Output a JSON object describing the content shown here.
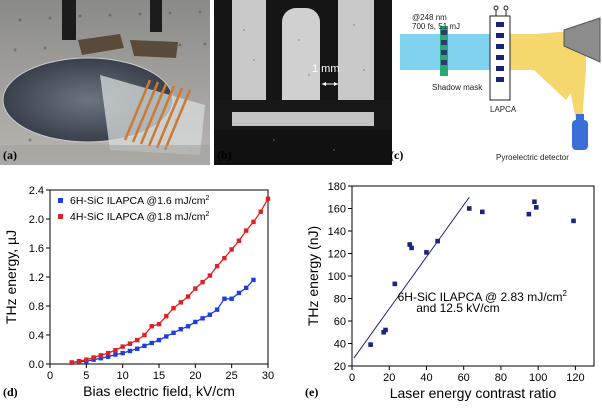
{
  "panel_labels": {
    "a": "(a)",
    "b": "(b)",
    "c": "(c)",
    "d": "(d)",
    "e": "(e)"
  },
  "panel_b": {
    "scale_label": "1 mm"
  },
  "panel_c": {
    "beam_wavelength": "@248 nm",
    "beam_params": "700 fs, 51 mJ",
    "mask_label": "Shadow mask",
    "device_label": "LAPCA",
    "detector_label": "Pyroelectric detector",
    "colors": {
      "beam": "#7fd3ee",
      "thz": "#f5d76e",
      "mask": "#2aa876",
      "detector": "#3b6fd8"
    }
  },
  "chart_data": [
    {
      "type": "scatter",
      "xlabel": "Bias electric field, kV/cm",
      "ylabel": "THz energy, µJ",
      "xlim": [
        0,
        30
      ],
      "ylim": [
        0,
        2.4
      ],
      "xticks": [
        "0",
        "5",
        "10",
        "15",
        "20",
        "25",
        "30"
      ],
      "yticks": [
        "0.0",
        "0.4",
        "0.8",
        "1.2",
        "1.6",
        "2.0",
        "2.4"
      ],
      "legend_position": "top-left",
      "series": [
        {
          "name": "6H-SiC ILAPCA @1.6 mJ/cm",
          "superscript": "2",
          "color": "#1f3ce0",
          "marker": "square",
          "x": [
            3,
            4,
            5,
            6,
            7,
            8,
            9,
            10,
            11,
            12,
            13,
            14,
            15,
            16,
            17,
            18,
            19,
            20,
            21,
            22,
            23,
            24,
            25,
            26,
            27,
            28
          ],
          "y": [
            0.02,
            0.03,
            0.04,
            0.06,
            0.08,
            0.1,
            0.13,
            0.15,
            0.18,
            0.21,
            0.25,
            0.29,
            0.33,
            0.38,
            0.43,
            0.48,
            0.52,
            0.58,
            0.63,
            0.68,
            0.75,
            0.9,
            0.9,
            0.98,
            1.05,
            1.16
          ]
        },
        {
          "name": "4H-SiC ILAPCA @1.8 mJ/cm",
          "superscript": "2",
          "color": "#e02020",
          "marker": "square",
          "x": [
            3,
            4,
            5,
            6,
            7,
            8,
            9,
            10,
            11,
            12,
            13,
            14,
            15,
            16,
            17,
            18,
            19,
            20,
            21,
            22,
            23,
            24,
            25,
            26,
            27,
            28,
            29,
            30
          ],
          "y": [
            0.02,
            0.04,
            0.06,
            0.09,
            0.12,
            0.15,
            0.19,
            0.24,
            0.28,
            0.33,
            0.4,
            0.52,
            0.55,
            0.66,
            0.77,
            0.85,
            0.93,
            1.04,
            1.13,
            1.22,
            1.35,
            1.46,
            1.58,
            1.7,
            1.84,
            1.96,
            2.1,
            2.28
          ]
        }
      ]
    },
    {
      "type": "scatter",
      "xlabel": "Laser energy contrast ratio",
      "ylabel": "THz energy (nJ)",
      "xlim": [
        0,
        130
      ],
      "ylim": [
        20,
        180
      ],
      "xticks": [
        "0",
        "20",
        "40",
        "60",
        "80",
        "100",
        "120"
      ],
      "yticks": [
        "20",
        "40",
        "60",
        "80",
        "100",
        "120",
        "140",
        "160",
        "180"
      ],
      "annotation_line1": "6H-SiC ILAPCA @ 2.83 mJ/cm",
      "annotation_sup": "2",
      "annotation_line2": "and 12.5 kV/cm",
      "fit_line": {
        "x": [
          1,
          63
        ],
        "y": [
          27,
          170
        ]
      },
      "series": [
        {
          "name": "",
          "color": "#1a237e",
          "marker": "square",
          "x": [
            10,
            17,
            18,
            23,
            31,
            32,
            40,
            46,
            63,
            70,
            95,
            98,
            99,
            119
          ],
          "y": [
            39,
            50,
            52,
            93,
            128,
            125,
            121,
            131,
            160,
            157,
            155,
            166,
            161,
            149
          ]
        }
      ]
    }
  ]
}
